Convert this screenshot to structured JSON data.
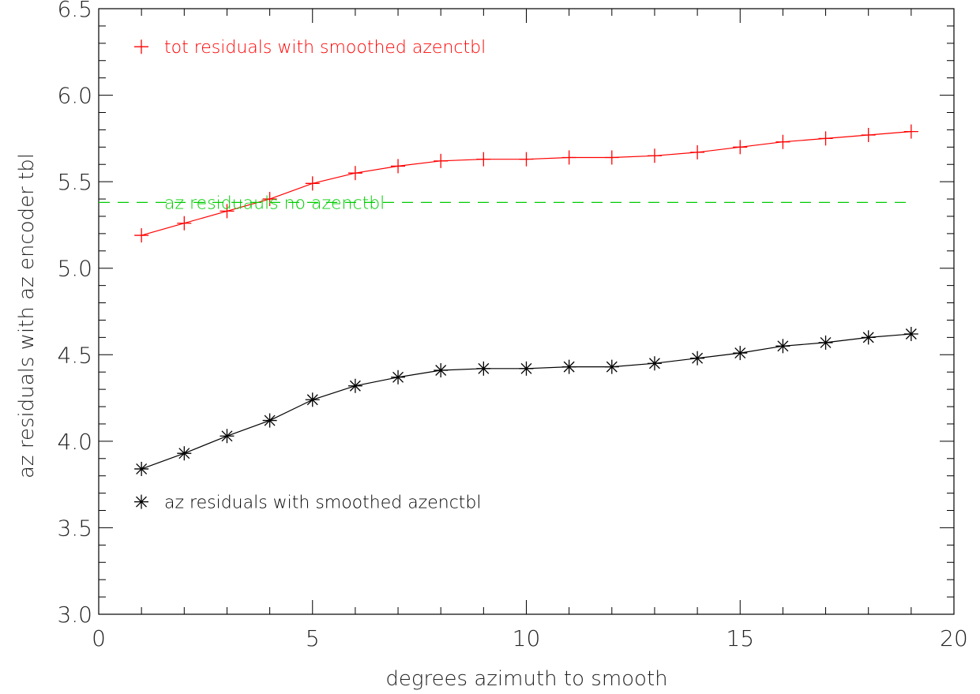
{
  "chart_data": {
    "type": "line",
    "title": "",
    "xlabel": "degrees azimuth to smooth",
    "ylabel": "az residuals with az encoder tbl",
    "xlim": [
      0,
      20
    ],
    "ylim": [
      3.0,
      6.5
    ],
    "xticks": [
      0,
      5,
      10,
      15,
      20
    ],
    "xtick_labels": [
      "0",
      "5",
      "10",
      "15",
      "20"
    ],
    "yticks": [
      3.0,
      3.5,
      4.0,
      4.5,
      5.0,
      5.5,
      6.0,
      6.5
    ],
    "ytick_labels": [
      "3.0",
      "3.5",
      "4.0",
      "4.5",
      "5.0",
      "5.5",
      "6.0",
      "6.5"
    ],
    "grid": false,
    "series": [
      {
        "name": "tot residuals with smoothed azenctbl",
        "color": "#ff0000",
        "marker": "plus",
        "line": "solid",
        "x": [
          1,
          2,
          3,
          4,
          5,
          6,
          7,
          8,
          9,
          10,
          11,
          12,
          13,
          14,
          15,
          16,
          17,
          18,
          19
        ],
        "y": [
          5.19,
          5.26,
          5.33,
          5.4,
          5.49,
          5.55,
          5.59,
          5.62,
          5.63,
          5.63,
          5.64,
          5.64,
          5.65,
          5.67,
          5.7,
          5.73,
          5.75,
          5.77,
          5.79
        ]
      },
      {
        "name": "az  residuals with smoothed azenctbl",
        "color": "#000000",
        "marker": "asterisk",
        "line": "solid",
        "x": [
          1,
          2,
          3,
          4,
          5,
          6,
          7,
          8,
          9,
          10,
          11,
          12,
          13,
          14,
          15,
          16,
          17,
          18,
          19
        ],
        "y": [
          3.84,
          3.93,
          4.03,
          4.12,
          4.24,
          4.32,
          4.37,
          4.41,
          4.42,
          4.42,
          4.43,
          4.43,
          4.45,
          4.48,
          4.51,
          4.55,
          4.57,
          4.6,
          4.62
        ]
      },
      {
        "name": "az  residuauls no azenctbl",
        "color": "#00cc00",
        "marker": "none",
        "line": "dashed",
        "x": [
          0,
          19
        ],
        "y": [
          5.38,
          5.38
        ]
      }
    ],
    "legend": [
      {
        "label": "tot residuals with smoothed azenctbl",
        "color": "#ff0000",
        "marker": "plus",
        "y": 6.28
      },
      {
        "label": "az  residuauls no azenctbl",
        "color": "#00cc00",
        "marker": "none",
        "y": 5.38
      },
      {
        "label": "az  residuals with smoothed azenctbl",
        "color": "#000000",
        "marker": "asterisk",
        "y": 3.65
      }
    ]
  }
}
